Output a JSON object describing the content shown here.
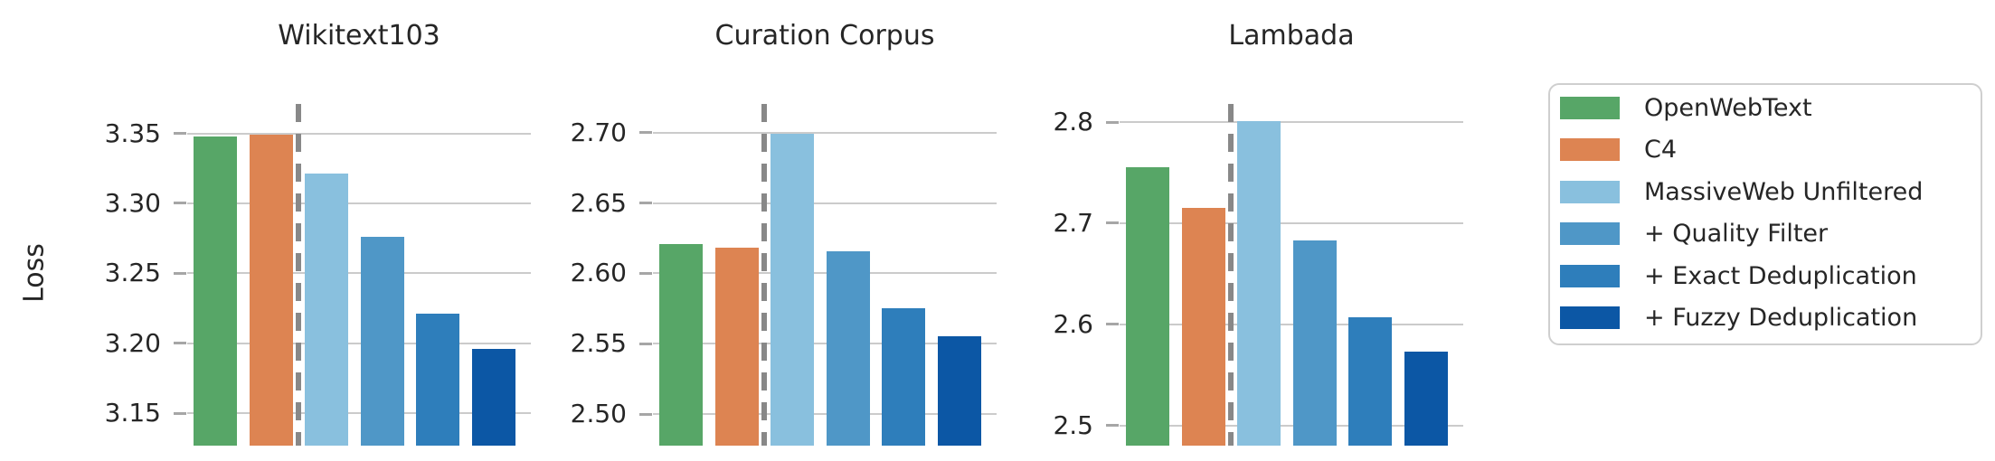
{
  "figure": {
    "ylabel": "Loss"
  },
  "chart_data": [
    {
      "type": "bar",
      "title": "Wikitext103",
      "ylabel": "Loss",
      "categories": [
        "OpenWebText",
        "C4",
        "MassiveWeb Unfiltered",
        "+ Quality Filter",
        "+ Exact Deduplication",
        "+ Fuzzy Deduplication"
      ],
      "values": [
        3.348,
        3.349,
        3.321,
        3.276,
        3.221,
        3.196
      ],
      "ylim": [
        3.127,
        3.371
      ],
      "yticks": [
        3.35,
        3.3,
        3.25,
        3.2,
        3.15
      ],
      "ytick_labels": [
        "3.35",
        "3.30",
        "3.25",
        "3.20",
        "3.15"
      ],
      "grid": true,
      "separator_after_index": 1
    },
    {
      "type": "bar",
      "title": "Curation Corpus",
      "ylabel": "Loss",
      "categories": [
        "OpenWebText",
        "C4",
        "MassiveWeb Unfiltered",
        "+ Quality Filter",
        "+ Exact Deduplication",
        "+ Fuzzy Deduplication"
      ],
      "values": [
        2.621,
        2.618,
        2.699,
        2.616,
        2.575,
        2.555
      ],
      "ylim": [
        2.4775,
        2.7205
      ],
      "yticks": [
        2.7,
        2.65,
        2.6,
        2.55,
        2.5
      ],
      "ytick_labels": [
        "2.70",
        "2.65",
        "2.60",
        "2.55",
        "2.50"
      ],
      "grid": true,
      "separator_after_index": 1
    },
    {
      "type": "bar",
      "title": "Lambada",
      "ylabel": "Loss",
      "categories": [
        "OpenWebText",
        "C4",
        "MassiveWeb Unfiltered",
        "+ Quality Filter",
        "+ Exact Deduplication",
        "+ Fuzzy Deduplication"
      ],
      "values": [
        2.755,
        2.715,
        2.801,
        2.683,
        2.607,
        2.573
      ],
      "ylim": [
        2.48,
        2.818
      ],
      "yticks": [
        2.8,
        2.7,
        2.6,
        2.5
      ],
      "ytick_labels": [
        "2.8",
        "2.7",
        "2.6",
        "2.5"
      ],
      "grid": true,
      "separator_after_index": 1
    }
  ],
  "legend": {
    "position": "right",
    "items": [
      {
        "label": "OpenWebText",
        "color": "#57a667"
      },
      {
        "label": "C4",
        "color": "#dd8452"
      },
      {
        "label": "MassiveWeb Unfiltered",
        "color": "#89c0de"
      },
      {
        "label": "+ Quality Filter",
        "color": "#4f97c7"
      },
      {
        "label": "+ Exact Deduplication",
        "color": "#2e7ebb"
      },
      {
        "label": "+ Fuzzy Deduplication",
        "color": "#0c57a5"
      }
    ]
  },
  "style_colors": {
    "grid": "#cbcbcb",
    "tick_mark": "#a6a6a6",
    "separator_line": "#888888",
    "text": "#262626",
    "legend_border": "#cfcfcf",
    "background": "#ffffff"
  }
}
